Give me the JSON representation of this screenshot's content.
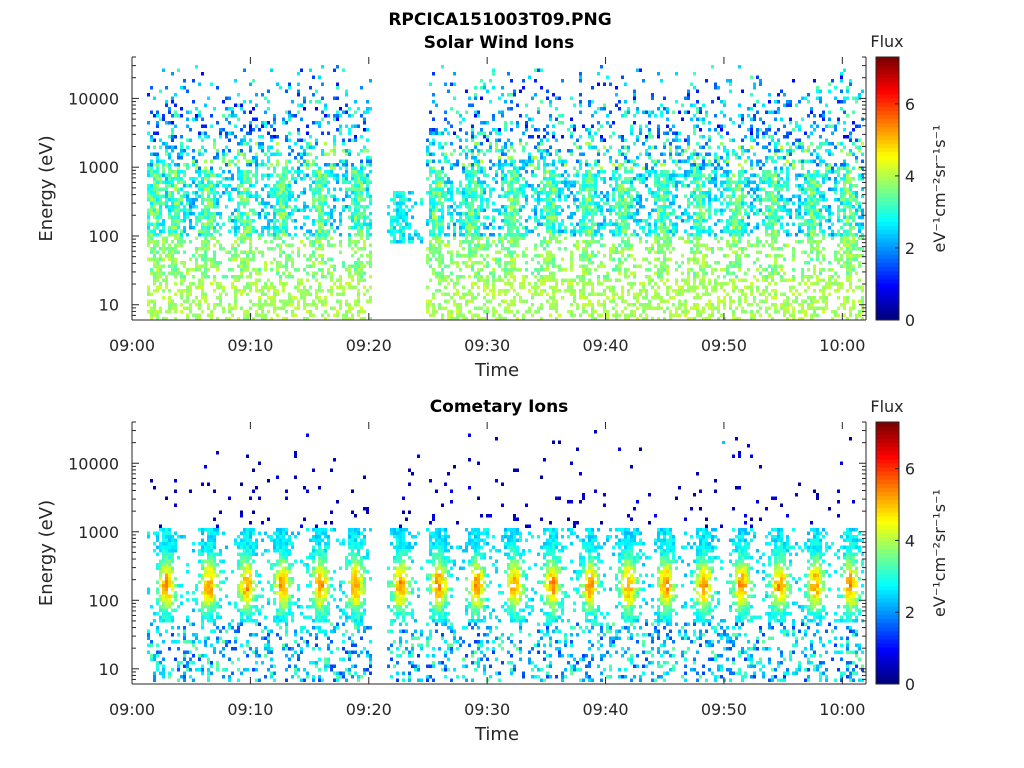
{
  "figure": {
    "title": "RPCICA151003T09.PNG"
  },
  "chart_data": [
    {
      "type": "heatmap",
      "title": "Solar Wind Ions",
      "xlabel": "Time",
      "ylabel": "Energy (eV)",
      "x_ticks": [
        "09:00",
        "09:10",
        "09:20",
        "09:30",
        "09:40",
        "09:50",
        "10:00"
      ],
      "x_tick_minutes": [
        0,
        10,
        20,
        30,
        40,
        50,
        60
      ],
      "xlim_minutes": [
        0,
        62
      ],
      "y_scale": "log",
      "y_ticks": [
        "10",
        "100",
        "1000",
        "10000"
      ],
      "y_tick_values": [
        10,
        100,
        1000,
        10000
      ],
      "ylim": [
        6,
        40000
      ],
      "data_gap_minutes": [
        20.2,
        24.8
      ],
      "colorbar": {
        "label": "Flux",
        "unit": "eV⁻¹cm⁻²sr⁻¹s⁻¹",
        "ticks": [
          "0",
          "2",
          "4",
          "6"
        ],
        "range": [
          0,
          7.3
        ],
        "colormap": "jet"
      },
      "population": "solar-wind",
      "pulses_minutes": [
        1.8,
        3.6,
        6.2,
        9.4,
        12.6,
        15.8,
        19.0,
        22.5,
        25.6,
        28.6,
        32.0,
        35.2,
        38.4,
        41.4,
        44.6,
        47.8,
        51.0,
        54.0,
        57.4,
        60.4
      ]
    },
    {
      "type": "heatmap",
      "title": "Cometary Ions",
      "xlabel": "Time",
      "ylabel": "Energy (eV)",
      "x_ticks": [
        "09:00",
        "09:10",
        "09:20",
        "09:30",
        "09:40",
        "09:50",
        "10:00"
      ],
      "x_tick_minutes": [
        0,
        10,
        20,
        30,
        40,
        50,
        60
      ],
      "xlim_minutes": [
        0,
        62
      ],
      "y_scale": "log",
      "y_ticks": [
        "10",
        "100",
        "1000",
        "10000"
      ],
      "y_tick_values": [
        10,
        100,
        1000,
        10000
      ],
      "ylim": [
        6,
        40000
      ],
      "data_gap_minutes": [
        20.2,
        24.8
      ],
      "colorbar": {
        "label": "Flux",
        "unit": "eV⁻¹cm⁻²sr⁻¹s⁻¹",
        "ticks": [
          "0",
          "2",
          "4",
          "6"
        ],
        "range": [
          0,
          7.3
        ],
        "colormap": "jet"
      },
      "population": "cometary",
      "pulses_minutes": [
        2.8,
        6.4,
        9.6,
        12.6,
        15.8,
        18.8,
        22.6,
        25.8,
        29.0,
        32.2,
        35.4,
        38.6,
        41.8,
        45.0,
        48.2,
        51.4,
        54.6,
        57.6,
        60.6
      ]
    }
  ]
}
